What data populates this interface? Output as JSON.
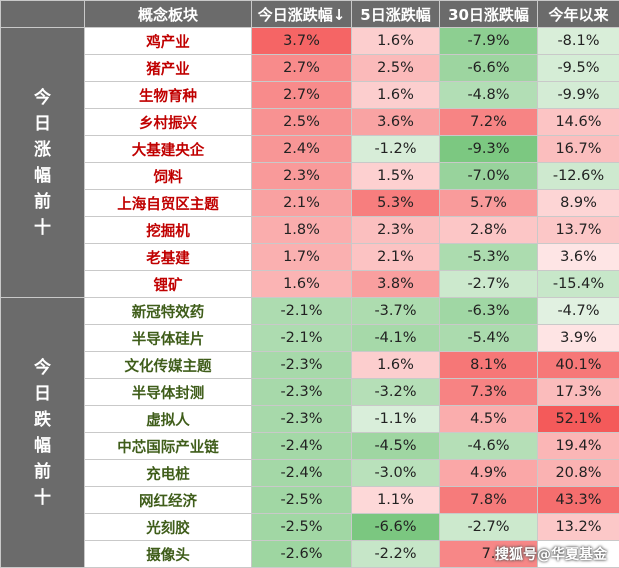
{
  "header": {
    "corner": "",
    "name": "概念板块",
    "today": "今日涨跌幅↓",
    "five_day": "5日涨跌幅",
    "thirty_day": "30日涨跌幅",
    "ytd": "今年以来"
  },
  "groups": {
    "top": [
      "今",
      "日",
      "涨",
      "幅",
      "前",
      "十"
    ],
    "bottom": [
      "今",
      "日",
      "跌",
      "幅",
      "前",
      "十"
    ]
  },
  "rows": [
    {
      "name": "鸡产业",
      "today": "3.7%",
      "five_day": "1.6%",
      "thirty_day": "-7.9%",
      "ytd": "-8.1%"
    },
    {
      "name": "猪产业",
      "today": "2.7%",
      "five_day": "2.5%",
      "thirty_day": "-6.6%",
      "ytd": "-9.5%"
    },
    {
      "name": "生物育种",
      "today": "2.7%",
      "five_day": "1.6%",
      "thirty_day": "-4.8%",
      "ytd": "-9.9%"
    },
    {
      "name": "乡村振兴",
      "today": "2.5%",
      "five_day": "3.6%",
      "thirty_day": "7.2%",
      "ytd": "14.6%"
    },
    {
      "name": "大基建央企",
      "today": "2.4%",
      "five_day": "-1.2%",
      "thirty_day": "-9.3%",
      "ytd": "16.7%"
    },
    {
      "name": "饲料",
      "today": "2.3%",
      "five_day": "1.5%",
      "thirty_day": "-7.0%",
      "ytd": "-12.6%"
    },
    {
      "name": "上海自贸区主题",
      "today": "2.1%",
      "five_day": "5.3%",
      "thirty_day": "5.7%",
      "ytd": "8.9%"
    },
    {
      "name": "挖掘机",
      "today": "1.8%",
      "five_day": "2.3%",
      "thirty_day": "2.8%",
      "ytd": "13.7%"
    },
    {
      "name": "老基建",
      "today": "1.7%",
      "five_day": "2.1%",
      "thirty_day": "-5.3%",
      "ytd": "3.6%"
    },
    {
      "name": "锂矿",
      "today": "1.6%",
      "five_day": "3.8%",
      "thirty_day": "-2.7%",
      "ytd": "-15.4%"
    },
    {
      "name": "新冠特效药",
      "today": "-2.1%",
      "five_day": "-3.7%",
      "thirty_day": "-6.3%",
      "ytd": "-4.7%"
    },
    {
      "name": "半导体硅片",
      "today": "-2.1%",
      "five_day": "-4.1%",
      "thirty_day": "-5.4%",
      "ytd": "3.9%"
    },
    {
      "name": "文化传媒主题",
      "today": "-2.3%",
      "five_day": "1.6%",
      "thirty_day": "8.1%",
      "ytd": "40.1%"
    },
    {
      "name": "半导体封测",
      "today": "-2.3%",
      "five_day": "-3.2%",
      "thirty_day": "7.3%",
      "ytd": "17.3%"
    },
    {
      "name": "虚拟人",
      "today": "-2.3%",
      "five_day": "-1.1%",
      "thirty_day": "4.5%",
      "ytd": "52.1%"
    },
    {
      "name": "中芯国际产业链",
      "today": "-2.4%",
      "five_day": "-4.5%",
      "thirty_day": "-4.6%",
      "ytd": "19.4%"
    },
    {
      "name": "充电桩",
      "today": "-2.4%",
      "five_day": "-3.0%",
      "thirty_day": "4.9%",
      "ytd": "20.8%"
    },
    {
      "name": "网红经济",
      "today": "-2.5%",
      "five_day": "1.1%",
      "thirty_day": "7.8%",
      "ytd": "43.3%"
    },
    {
      "name": "光刻胶",
      "today": "-2.5%",
      "five_day": "-6.6%",
      "thirty_day": "-2.7%",
      "ytd": "13.2%"
    },
    {
      "name": "摄像头",
      "today": "-2.6%",
      "five_day": "-2.2%",
      "thirty_day": "7.",
      "ytd": ""
    }
  ],
  "watermark": "搜狐号@华夏基金"
}
